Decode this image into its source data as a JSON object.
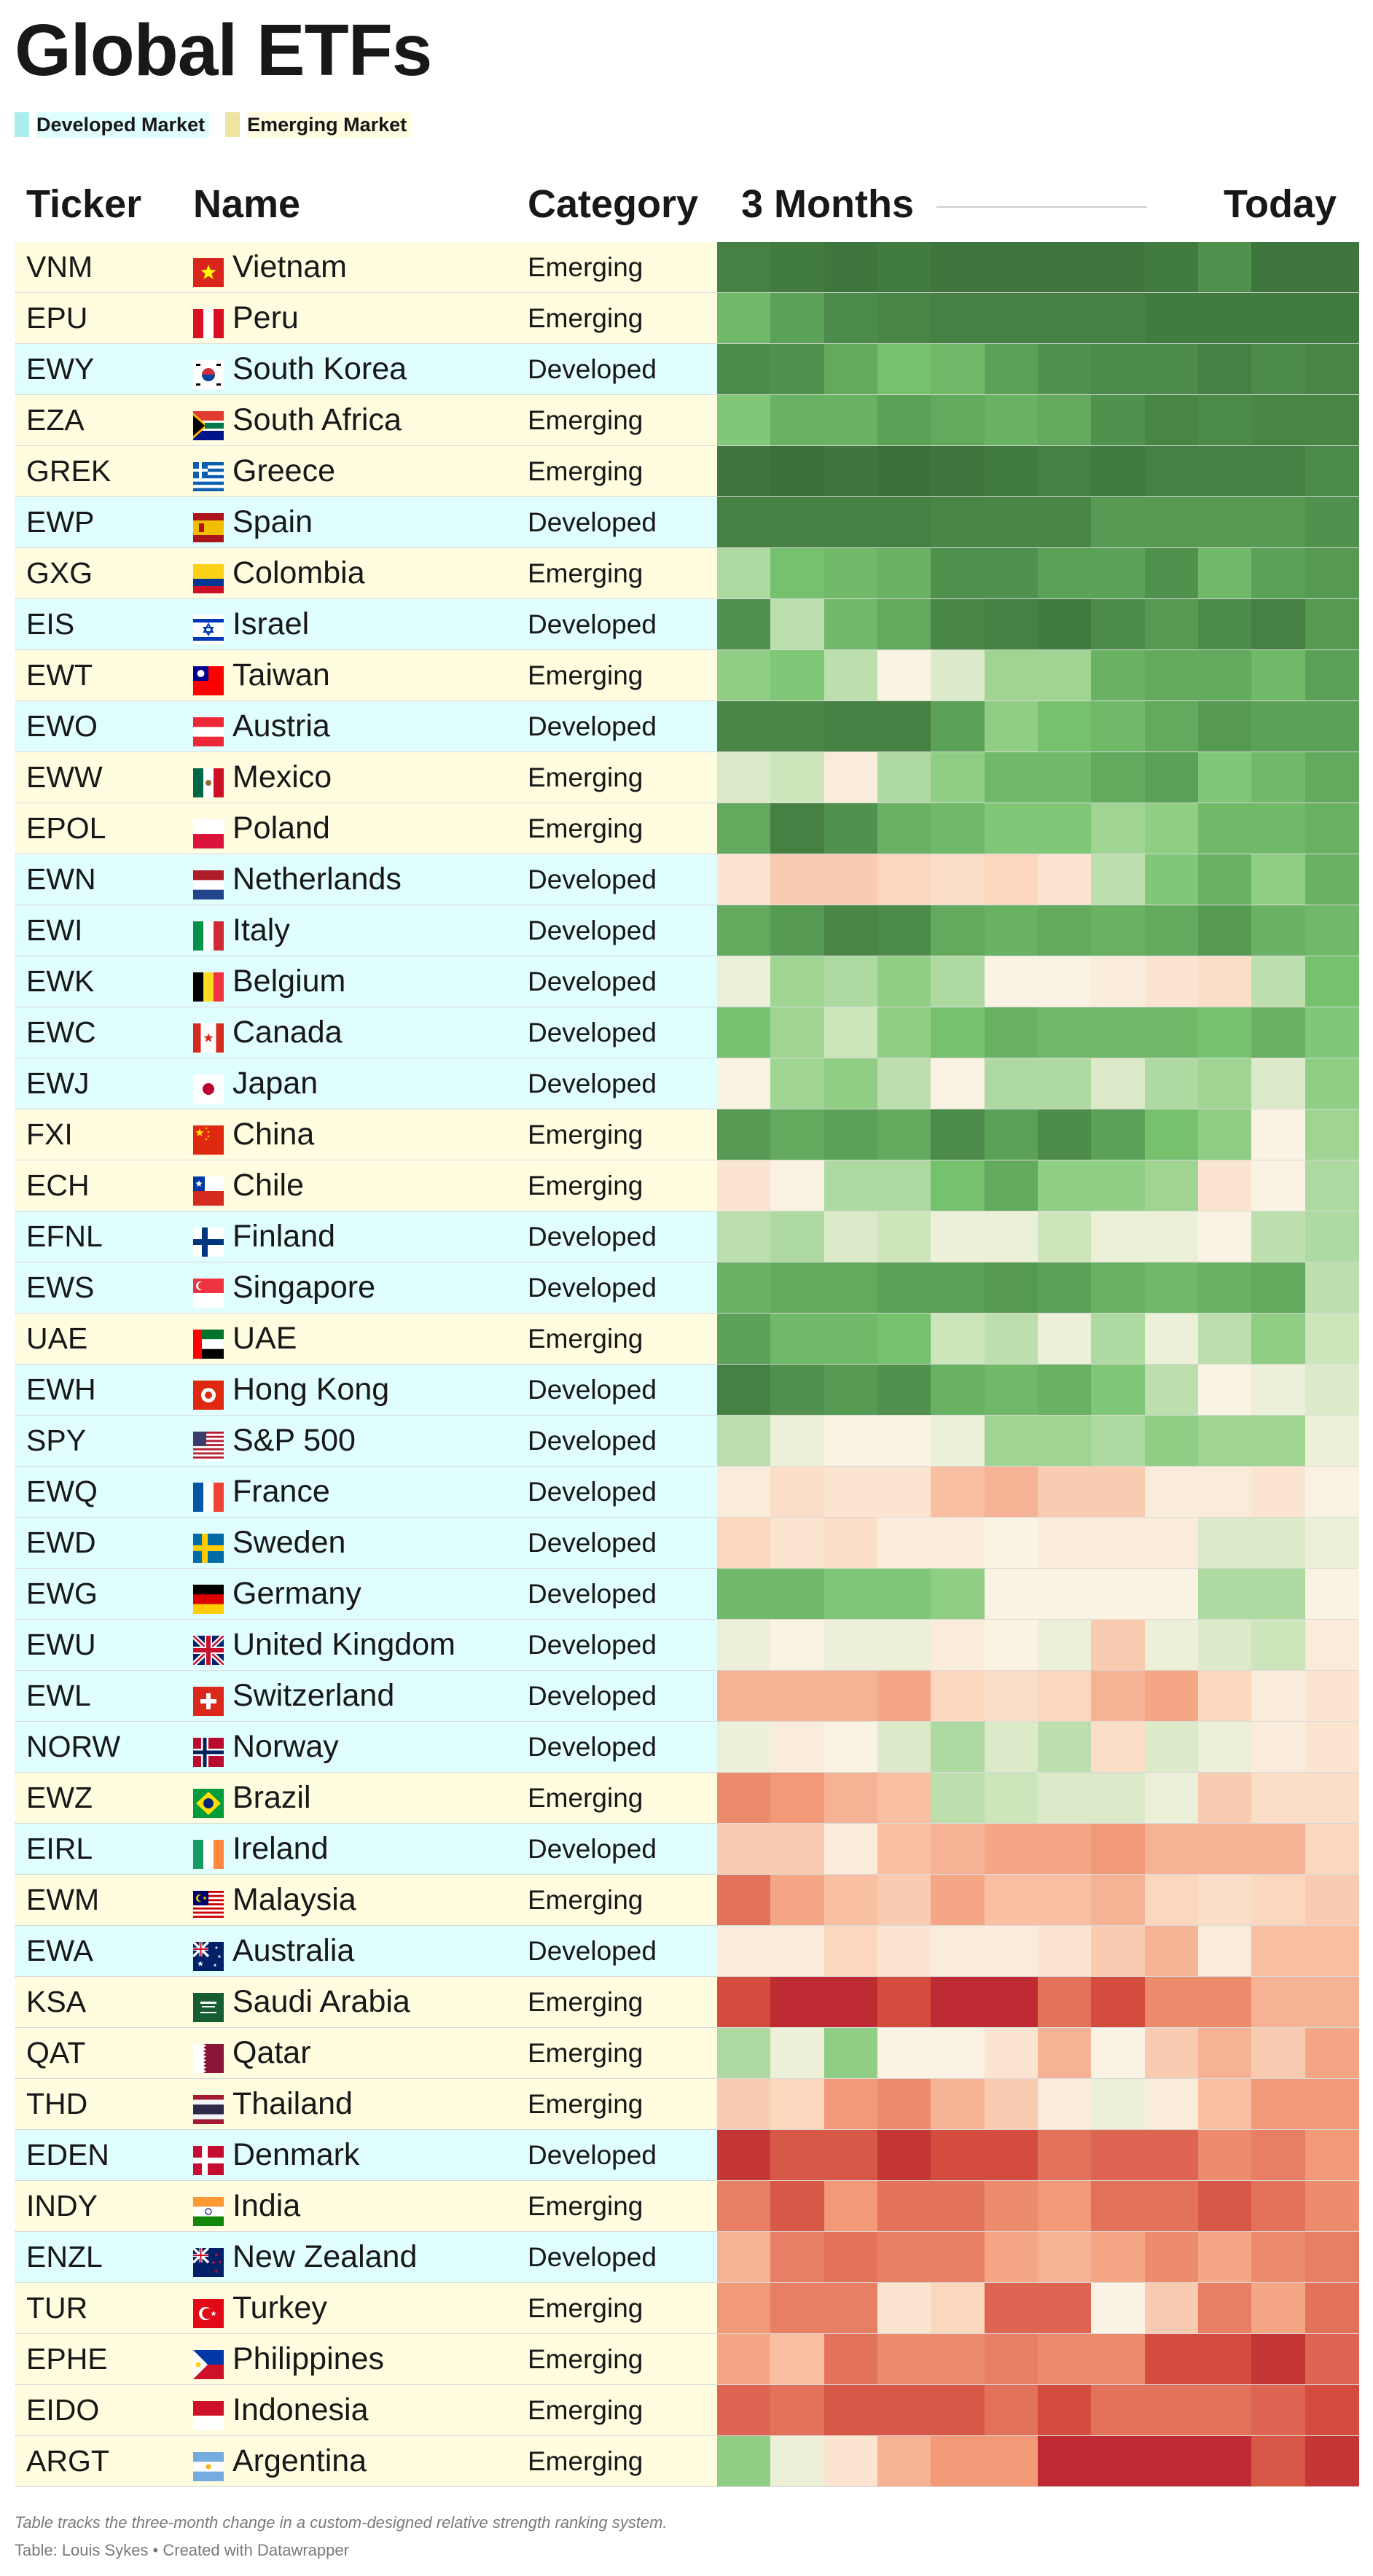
{
  "title": "Global ETFs",
  "legend": [
    {
      "label": "Developed Market",
      "color": "#abeced",
      "bg": "#e0fefe"
    },
    {
      "label": "Emerging Market",
      "color": "#ece4a0",
      "bg": "#fffce0"
    }
  ],
  "headers": {
    "ticker": "Ticker",
    "name": "Name",
    "category": "Category",
    "start": "3 Months",
    "end": "Today"
  },
  "colors": {
    "developed_row": "#e0fefe",
    "emerging_row": "#fffce0"
  },
  "chart_data": {
    "type": "heatmap",
    "title": "Global ETFs",
    "value_description": "relative strength rank (1 = strongest, 43 = weakest), 12 steps over 3 months",
    "periods": 12,
    "x_start_label": "3 Months",
    "x_end_label": "Today",
    "color_scale": {
      "min": 1,
      "max": 43,
      "low_color": "green",
      "mid_color": "cream",
      "high_color": "red"
    },
    "rows": [
      {
        "ticker": "VNM",
        "name": "Vietnam",
        "category": "Emerging",
        "flag": "vietnam-flag",
        "values": [
          5,
          4,
          3,
          4,
          3,
          3,
          3,
          3,
          4,
          8,
          3,
          3
        ]
      },
      {
        "ticker": "EPU",
        "name": "Peru",
        "category": "Emerging",
        "flag": "peru-flag",
        "values": [
          13,
          10,
          7,
          6,
          5,
          5,
          5,
          5,
          4,
          4,
          4,
          4
        ]
      },
      {
        "ticker": "EWY",
        "name": "South Korea",
        "category": "Developed",
        "flag": "south-korea-flag",
        "values": [
          7,
          8,
          11,
          14,
          13,
          10,
          8,
          7,
          7,
          5,
          7,
          6
        ]
      },
      {
        "ticker": "EZA",
        "name": "South Africa",
        "category": "Emerging",
        "flag": "south-africa-flag",
        "values": [
          15,
          12,
          12,
          10,
          11,
          12,
          11,
          8,
          6,
          7,
          6,
          6
        ]
      },
      {
        "ticker": "GREK",
        "name": "Greece",
        "category": "Emerging",
        "flag": "greece-flag",
        "values": [
          3,
          2,
          3,
          2,
          3,
          4,
          5,
          4,
          5,
          5,
          5,
          7
        ]
      },
      {
        "ticker": "EWP",
        "name": "Spain",
        "category": "Developed",
        "flag": "spain-flag",
        "values": [
          5,
          5,
          5,
          5,
          6,
          6,
          6,
          9,
          9,
          9,
          9,
          8
        ]
      },
      {
        "ticker": "GXG",
        "name": "Colombia",
        "category": "Emerging",
        "flag": "colombia-flag",
        "values": [
          18,
          14,
          13,
          12,
          8,
          8,
          10,
          10,
          8,
          13,
          10,
          9
        ]
      },
      {
        "ticker": "EIS",
        "name": "Israel",
        "category": "Developed",
        "flag": "israel-flag",
        "values": [
          8,
          19,
          13,
          11,
          6,
          5,
          4,
          7,
          9,
          7,
          5,
          9
        ]
      },
      {
        "ticker": "EWT",
        "name": "Taiwan",
        "category": "Emerging",
        "flag": "taiwan-flag",
        "values": [
          16,
          15,
          19,
          23,
          21,
          17,
          17,
          12,
          11,
          11,
          13,
          10
        ]
      },
      {
        "ticker": "EWO",
        "name": "Austria",
        "category": "Developed",
        "flag": "austria-flag",
        "values": [
          6,
          6,
          5,
          5,
          10,
          16,
          14,
          13,
          11,
          9,
          10,
          10
        ]
      },
      {
        "ticker": "EWW",
        "name": "Mexico",
        "category": "Emerging",
        "flag": "mexico-flag",
        "values": [
          21,
          20,
          24,
          18,
          16,
          13,
          13,
          11,
          10,
          15,
          13,
          11
        ]
      },
      {
        "ticker": "EPOL",
        "name": "Poland",
        "category": "Emerging",
        "flag": "poland-flag",
        "values": [
          11,
          5,
          8,
          12,
          13,
          15,
          15,
          17,
          16,
          13,
          13,
          12
        ]
      },
      {
        "ticker": "EWN",
        "name": "Netherlands",
        "category": "Developed",
        "flag": "netherlands-flag",
        "values": [
          25,
          28,
          28,
          27,
          26,
          27,
          25,
          19,
          15,
          12,
          16,
          12
        ]
      },
      {
        "ticker": "EWI",
        "name": "Italy",
        "category": "Developed",
        "flag": "italy-flag",
        "values": [
          11,
          9,
          6,
          7,
          11,
          12,
          11,
          12,
          11,
          9,
          12,
          13
        ]
      },
      {
        "ticker": "EWK",
        "name": "Belgium",
        "category": "Developed",
        "flag": "belgium-flag",
        "values": [
          22,
          17,
          18,
          16,
          18,
          23,
          23,
          24,
          25,
          26,
          19,
          14
        ]
      },
      {
        "ticker": "EWC",
        "name": "Canada",
        "category": "Developed",
        "flag": "canada-flag",
        "values": [
          14,
          17,
          20,
          16,
          14,
          12,
          13,
          13,
          13,
          14,
          12,
          15
        ]
      },
      {
        "ticker": "EWJ",
        "name": "Japan",
        "category": "Developed",
        "flag": "japan-flag",
        "values": [
          23,
          17,
          16,
          19,
          23,
          18,
          18,
          21,
          18,
          17,
          21,
          16
        ]
      },
      {
        "ticker": "FXI",
        "name": "China",
        "category": "Emerging",
        "flag": "china-flag",
        "values": [
          9,
          11,
          10,
          11,
          7,
          10,
          7,
          10,
          14,
          16,
          23,
          17
        ]
      },
      {
        "ticker": "ECH",
        "name": "Chile",
        "category": "Emerging",
        "flag": "chile-flag",
        "values": [
          25,
          23,
          18,
          18,
          14,
          11,
          16,
          16,
          17,
          25,
          23,
          18
        ]
      },
      {
        "ticker": "EFNL",
        "name": "Finland",
        "category": "Developed",
        "flag": "finland-flag",
        "values": [
          19,
          18,
          21,
          20,
          22,
          22,
          20,
          22,
          22,
          23,
          19,
          18
        ]
      },
      {
        "ticker": "EWS",
        "name": "Singapore",
        "category": "Developed",
        "flag": "singapore-flag",
        "values": [
          12,
          11,
          11,
          10,
          10,
          9,
          10,
          12,
          13,
          12,
          11,
          19
        ]
      },
      {
        "ticker": "UAE",
        "name": "UAE",
        "category": "Emerging",
        "flag": "uae-flag",
        "values": [
          10,
          13,
          13,
          14,
          20,
          19,
          22,
          18,
          22,
          19,
          16,
          20
        ]
      },
      {
        "ticker": "EWH",
        "name": "Hong Kong",
        "category": "Developed",
        "flag": "hong-kong-flag",
        "values": [
          5,
          8,
          9,
          8,
          12,
          13,
          12,
          15,
          19,
          23,
          22,
          21
        ]
      },
      {
        "ticker": "SPY",
        "name": "S&P 500",
        "category": "Developed",
        "flag": "usa-flag",
        "values": [
          19,
          22,
          23,
          23,
          22,
          17,
          17,
          18,
          16,
          17,
          17,
          22
        ]
      },
      {
        "ticker": "EWQ",
        "name": "France",
        "category": "Developed",
        "flag": "france-flag",
        "values": [
          24,
          26,
          25,
          25,
          29,
          30,
          28,
          28,
          24,
          24,
          25,
          23
        ]
      },
      {
        "ticker": "EWD",
        "name": "Sweden",
        "category": "Developed",
        "flag": "sweden-flag",
        "values": [
          27,
          25,
          26,
          24,
          24,
          23,
          24,
          24,
          24,
          21,
          21,
          22
        ]
      },
      {
        "ticker": "EWG",
        "name": "Germany",
        "category": "Developed",
        "flag": "germany-flag",
        "values": [
          13,
          13,
          15,
          15,
          16,
          23,
          23,
          23,
          23,
          18,
          18,
          23
        ]
      },
      {
        "ticker": "EWU",
        "name": "United Kingdom",
        "category": "Developed",
        "flag": "uk-flag",
        "values": [
          22,
          23,
          22,
          22,
          24,
          23,
          22,
          28,
          22,
          21,
          20,
          24
        ]
      },
      {
        "ticker": "EWL",
        "name": "Switzerland",
        "category": "Developed",
        "flag": "switzerland-flag",
        "values": [
          30,
          30,
          30,
          31,
          27,
          26,
          27,
          30,
          31,
          27,
          24,
          25
        ]
      },
      {
        "ticker": "NORW",
        "name": "Norway",
        "category": "Developed",
        "flag": "norway-flag",
        "values": [
          22,
          24,
          23,
          21,
          18,
          21,
          19,
          26,
          21,
          22,
          24,
          25
        ]
      },
      {
        "ticker": "EWZ",
        "name": "Brazil",
        "category": "Emerging",
        "flag": "brazil-flag",
        "values": [
          33,
          32,
          30,
          29,
          19,
          20,
          21,
          21,
          22,
          28,
          26,
          26
        ]
      },
      {
        "ticker": "EIRL",
        "name": "Ireland",
        "category": "Developed",
        "flag": "ireland-flag",
        "values": [
          28,
          28,
          24,
          29,
          30,
          31,
          31,
          32,
          30,
          30,
          30,
          27
        ]
      },
      {
        "ticker": "EWM",
        "name": "Malaysia",
        "category": "Emerging",
        "flag": "malaysia-flag",
        "values": [
          35,
          31,
          29,
          28,
          31,
          29,
          29,
          30,
          27,
          26,
          27,
          28
        ]
      },
      {
        "ticker": "EWA",
        "name": "Australia",
        "category": "Developed",
        "flag": "australia-flag",
        "values": [
          24,
          24,
          27,
          25,
          24,
          24,
          25,
          28,
          30,
          24,
          29,
          29
        ]
      },
      {
        "ticker": "KSA",
        "name": "Saudi Arabia",
        "category": "Emerging",
        "flag": "saudi-arabia-flag",
        "values": [
          38,
          41,
          41,
          38,
          41,
          41,
          35,
          38,
          33,
          33,
          30,
          30
        ]
      },
      {
        "ticker": "QAT",
        "name": "Qatar",
        "category": "Emerging",
        "flag": "qatar-flag",
        "values": [
          18,
          22,
          16,
          23,
          23,
          25,
          30,
          23,
          28,
          30,
          28,
          31
        ]
      },
      {
        "ticker": "THD",
        "name": "Thailand",
        "category": "Emerging",
        "flag": "thailand-flag",
        "values": [
          28,
          27,
          32,
          33,
          30,
          28,
          24,
          22,
          24,
          29,
          32,
          32
        ]
      },
      {
        "ticker": "EDEN",
        "name": "Denmark",
        "category": "Developed",
        "flag": "denmark-flag",
        "values": [
          40,
          37,
          37,
          40,
          38,
          38,
          35,
          36,
          36,
          33,
          34,
          32
        ]
      },
      {
        "ticker": "INDY",
        "name": "India",
        "category": "Emerging",
        "flag": "india-flag",
        "values": [
          34,
          37,
          32,
          35,
          35,
          33,
          32,
          35,
          35,
          37,
          35,
          33
        ]
      },
      {
        "ticker": "ENZL",
        "name": "New Zealand",
        "category": "Developed",
        "flag": "new-zealand-flag",
        "values": [
          30,
          34,
          35,
          34,
          34,
          31,
          30,
          31,
          33,
          31,
          33,
          34
        ]
      },
      {
        "ticker": "TUR",
        "name": "Turkey",
        "category": "Emerging",
        "flag": "turkey-flag",
        "values": [
          32,
          34,
          34,
          25,
          27,
          36,
          36,
          23,
          28,
          34,
          31,
          35
        ]
      },
      {
        "ticker": "EPHE",
        "name": "Philippines",
        "category": "Emerging",
        "flag": "philippines-flag",
        "values": [
          31,
          29,
          35,
          33,
          33,
          34,
          33,
          33,
          38,
          38,
          40,
          36
        ]
      },
      {
        "ticker": "EIDO",
        "name": "Indonesia",
        "category": "Emerging",
        "flag": "indonesia-flag",
        "values": [
          36,
          35,
          37,
          37,
          37,
          35,
          38,
          35,
          35,
          35,
          36,
          38
        ]
      },
      {
        "ticker": "ARGT",
        "name": "Argentina",
        "category": "Emerging",
        "flag": "argentina-flag",
        "values": [
          16,
          22,
          25,
          30,
          32,
          32,
          41,
          41,
          41,
          41,
          37,
          40
        ]
      }
    ]
  },
  "footer": {
    "note": "Table tracks the three-month change in a custom-designed relative strength ranking system.",
    "source": "Table: Louis Sykes • Created with Datawrapper"
  }
}
